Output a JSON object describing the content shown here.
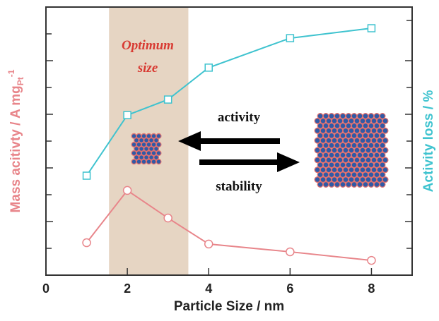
{
  "chart_data": {
    "type": "line",
    "x_label": "Particle Size / nm",
    "y_label": "Mass acitivty / A mg",
    "y_label_sub": "Pt",
    "y_label_sup": "-1",
    "y2_label": "Activity loss / %",
    "annotations": [
      "Optimum",
      "size",
      "activity",
      "stability"
    ],
    "shaded_region": [
      1.55,
      3.5
    ],
    "xlim": [
      0,
      9
    ],
    "xticks": [
      0,
      2,
      4,
      6,
      8
    ],
    "ylim": [
      0,
      10
    ],
    "y2lim": [
      0,
      10
    ],
    "series": [
      {
        "color": "#e8858a",
        "marker": "circle",
        "axis": "y",
        "x": [
          1,
          2,
          3,
          4,
          6,
          8
        ],
        "values": [
          1.21,
          3.16,
          2.13,
          1.16,
          0.87,
          0.55
        ]
      },
      {
        "color": "#3fc3cf",
        "marker": "square",
        "axis": "y2",
        "x": [
          1,
          2,
          3,
          4,
          6,
          8
        ],
        "values": [
          3.71,
          5.97,
          6.55,
          7.74,
          8.84,
          9.21
        ]
      }
    ]
  }
}
